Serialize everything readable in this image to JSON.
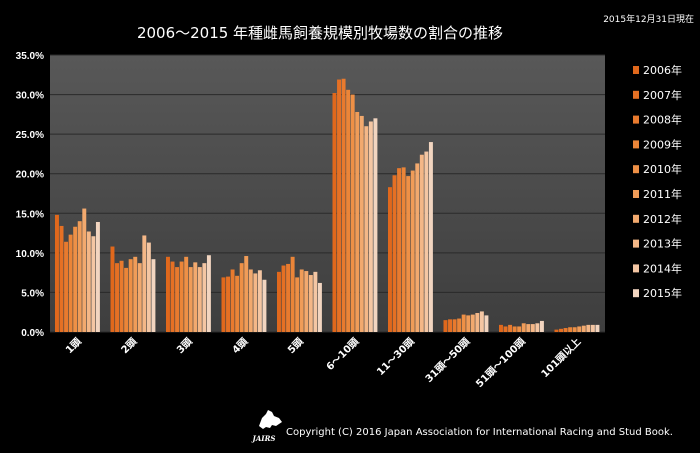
{
  "chart_data": {
    "type": "bar",
    "title": "2006～2015 年種雌馬飼養規模別牧場数の割合の推移",
    "date_note": "2015年12月31日現在",
    "ylim": [
      0,
      35
    ],
    "y_ticks": [
      "0.0%",
      "5.0%",
      "10.0%",
      "15.0%",
      "20.0%",
      "25.0%",
      "30.0%",
      "35.0%"
    ],
    "grid": true,
    "legend_position": "right",
    "categories": [
      "1頭",
      "2頭",
      "3頭",
      "4頭",
      "5頭",
      "6～10頭",
      "11～30頭",
      "31頭～50頭",
      "51頭～100頭",
      "101頭以上"
    ],
    "series": [
      {
        "name": "2006年",
        "color": "#e0681c",
        "values": [
          14.8,
          10.8,
          9.5,
          6.9,
          7.6,
          30.2,
          18.3,
          1.5,
          0.9,
          0.3
        ]
      },
      {
        "name": "2007年",
        "color": "#e57024",
        "values": [
          13.4,
          8.7,
          8.9,
          7.0,
          8.4,
          31.9,
          19.8,
          1.6,
          0.7,
          0.4
        ]
      },
      {
        "name": "2008年",
        "color": "#e87a2e",
        "values": [
          11.4,
          9.0,
          8.2,
          7.9,
          8.6,
          32.0,
          20.7,
          1.6,
          0.9,
          0.5
        ]
      },
      {
        "name": "2009年",
        "color": "#eb8538",
        "values": [
          12.3,
          8.1,
          8.9,
          7.1,
          9.5,
          30.6,
          20.8,
          1.7,
          0.7,
          0.6
        ]
      },
      {
        "name": "2010年",
        "color": "#ee9046",
        "values": [
          13.3,
          9.2,
          9.5,
          8.7,
          6.9,
          30.0,
          19.7,
          2.2,
          0.7,
          0.6
        ]
      },
      {
        "name": "2011年",
        "color": "#f09c58",
        "values": [
          14.0,
          9.5,
          8.2,
          9.6,
          7.9,
          27.8,
          20.4,
          2.1,
          1.1,
          0.7
        ]
      },
      {
        "name": "2012年",
        "color": "#f2a96e",
        "values": [
          15.6,
          8.7,
          8.8,
          7.9,
          7.7,
          27.3,
          21.3,
          2.2,
          1.0,
          0.8
        ]
      },
      {
        "name": "2013年",
        "color": "#f4b787",
        "values": [
          12.7,
          12.2,
          8.2,
          7.4,
          7.2,
          26.0,
          22.4,
          2.4,
          1.0,
          0.9
        ]
      },
      {
        "name": "2014年",
        "color": "#f4c6a3",
        "values": [
          12.1,
          11.3,
          8.7,
          7.8,
          7.6,
          26.6,
          22.8,
          2.6,
          1.1,
          0.9
        ]
      },
      {
        "name": "2015年",
        "color": "#f2d5c0",
        "values": [
          13.9,
          9.2,
          9.7,
          6.6,
          6.2,
          27.0,
          24.0,
          2.1,
          1.4,
          0.9
        ]
      }
    ]
  },
  "footer": {
    "logo_text": "JAIRS",
    "copyright": "Copyright (C) 2016 Japan Association for International Racing and Stud Book."
  }
}
